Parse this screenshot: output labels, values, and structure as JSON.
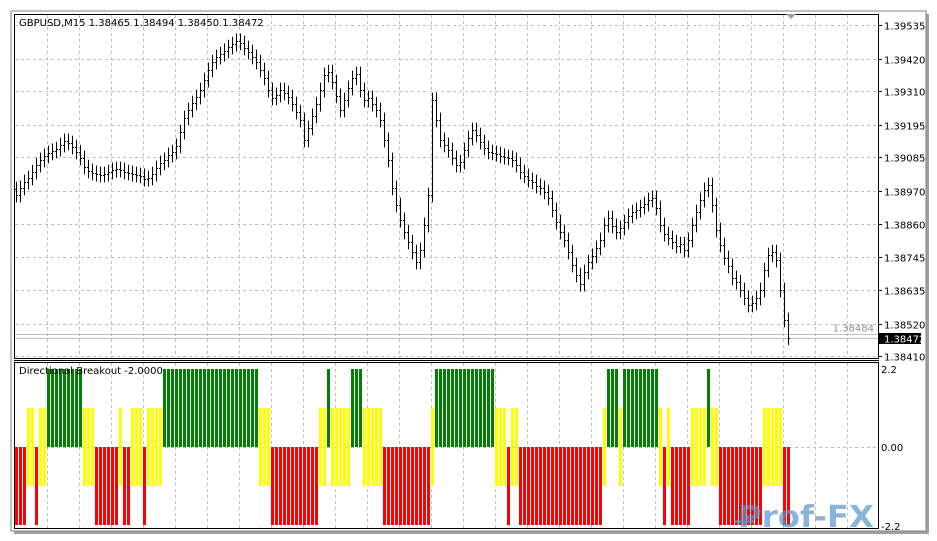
{
  "window": {
    "title": "GBPUSD,M15  1.38465 1.38494 1.38450 1.38472",
    "symbol": "GBPUSD",
    "timeframe": "M15",
    "ohlc": {
      "open": "1.38465",
      "high": "1.38494",
      "low": "1.38450",
      "close": "1.38472"
    }
  },
  "price_panel": {
    "axis_labels": [
      "1.39535",
      "1.39420",
      "1.39310",
      "1.39195",
      "1.39085",
      "1.38970",
      "1.38860",
      "1.38745",
      "1.38635",
      "1.38520",
      "1.38410"
    ],
    "current_price_label": "1.38472",
    "ask_price_label": "1.38484",
    "bar_color": "#000000",
    "grid_color": "#c0c0c0",
    "closes": [
      1.38957,
      1.38981,
      1.39001,
      1.39015,
      1.39035,
      1.39059,
      1.39076,
      1.3909,
      1.391,
      1.39107,
      1.39113,
      1.39127,
      1.39141,
      1.39134,
      1.3912,
      1.39103,
      1.39083,
      1.39052,
      1.39039,
      1.39032,
      1.39028,
      1.39025,
      1.39028,
      1.39035,
      1.39042,
      1.39045,
      1.39042,
      1.39035,
      1.39032,
      1.39028,
      1.39025,
      1.39022,
      1.39011,
      1.39015,
      1.39028,
      1.39049,
      1.39066,
      1.39076,
      1.39093,
      1.39103,
      1.39124,
      1.39171,
      1.39219,
      1.39246,
      1.3927,
      1.3929,
      1.39314,
      1.39348,
      1.39382,
      1.39409,
      1.39426,
      1.39436,
      1.39447,
      1.3946,
      1.3947,
      1.39481,
      1.39474,
      1.39457,
      1.39443,
      1.39426,
      1.39409,
      1.39382,
      1.39355,
      1.39314,
      1.39287,
      1.39297,
      1.39314,
      1.39304,
      1.3929,
      1.39266,
      1.39239,
      1.39212,
      1.39144,
      1.39185,
      1.39226,
      1.39266,
      1.39314,
      1.39365,
      1.39375,
      1.39341,
      1.39294,
      1.39246,
      1.3928,
      1.39321,
      1.39355,
      1.39368,
      1.39314,
      1.3928,
      1.39287,
      1.39266,
      1.39246,
      1.39212,
      1.39144,
      1.39076,
      1.38981,
      1.38923,
      1.38872,
      1.38831,
      1.38797,
      1.38763,
      1.38729,
      1.3877,
      1.38855,
      1.38957,
      1.3928,
      1.39212,
      1.39144,
      1.39127,
      1.3911,
      1.39083,
      1.39059,
      1.39069,
      1.3911,
      1.39151,
      1.39178,
      1.39161,
      1.39137,
      1.39117,
      1.39103,
      1.391,
      1.39096,
      1.3909,
      1.39086,
      1.39083,
      1.39076,
      1.39059,
      1.39035,
      1.39022,
      1.39008,
      1.39001,
      1.38988,
      1.38981,
      1.38967,
      1.38947,
      1.38906,
      1.38865,
      1.38831,
      1.38804,
      1.38763,
      1.38719,
      1.38685,
      1.38654,
      1.38695,
      1.38729,
      1.3875,
      1.38777,
      1.38804,
      1.38855,
      1.38879,
      1.38852,
      1.38831,
      1.38845,
      1.38865,
      1.38886,
      1.38899,
      1.38906,
      1.38916,
      1.38926,
      1.3894,
      1.38947,
      1.38913,
      1.38855,
      1.38824,
      1.38811,
      1.38797,
      1.38784,
      1.3879,
      1.3877,
      1.38804,
      1.38855,
      1.38899,
      1.3894,
      1.38974,
      1.38991,
      1.38923,
      1.38838,
      1.38787,
      1.38743,
      1.38716,
      1.38675,
      1.38661,
      1.38634,
      1.38607,
      1.38583,
      1.3859,
      1.38607,
      1.38634,
      1.38702,
      1.38753,
      1.38763,
      1.38736,
      1.38634,
      1.38532,
      1.38472
    ]
  },
  "indicator_panel": {
    "label": "Directional Breakout -2.0000",
    "axis_labels": {
      "top": "2.2",
      "zero": "0.00",
      "bottom": "-2.2"
    },
    "range": [
      -2.2,
      2.2
    ],
    "states": "RRRYYRYYGGGGGGGGGYYYRRRRRRYRRYYYRYYYYGGGGGGGGGGGGGGGGGGGGGGGGYYYRRRRRRRRRRRRYYGYYYYYGGGYYYYYRRRRRRRRRRRRYGGGGGGGGGGGGGGGYYYRYYRRRRRRRRRRRRRRRRRRRRRYGGGYGGGGGGGGGYRYRRRRRYYYYGYYRRRRRRRRRRRYYYYYRR",
    "state_colors": {
      "G": "#008000",
      "Y": "#ffff00",
      "R": "#ff0000"
    }
  },
  "watermark": {
    "text": "Prof-FX",
    "color": "#5b95c8"
  }
}
